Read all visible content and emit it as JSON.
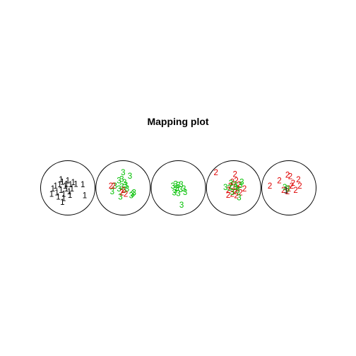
{
  "chart_data": {
    "type": "scatter",
    "title": "Mapping plot",
    "xlabel": "",
    "ylabel": "",
    "grid": false,
    "legend": "none",
    "class_colors": {
      "1": "#000000",
      "2": "#DF0000",
      "3": "#00C000"
    },
    "nodes": [
      {
        "id": 1,
        "points": [
          {
            "x": -0.55,
            "y": -0.05,
            "class": "1"
          },
          {
            "x": -0.45,
            "y": 0.05,
            "class": "1"
          },
          {
            "x": -0.4,
            "y": -0.2,
            "class": "1"
          },
          {
            "x": -0.3,
            "y": 0.1,
            "class": "1"
          },
          {
            "x": -0.25,
            "y": -0.1,
            "class": "1"
          },
          {
            "x": -0.2,
            "y": 0.2,
            "class": "1"
          },
          {
            "x": -0.15,
            "y": -0.25,
            "class": "1"
          },
          {
            "x": -0.1,
            "y": 0.05,
            "class": "1"
          },
          {
            "x": -0.05,
            "y": -0.05,
            "class": "1"
          },
          {
            "x": 0.0,
            "y": 0.25,
            "class": "1"
          },
          {
            "x": 0.05,
            "y": -0.15,
            "class": "1"
          },
          {
            "x": 0.1,
            "y": 0.1,
            "class": "1"
          },
          {
            "x": 0.15,
            "y": -0.05,
            "class": "1"
          },
          {
            "x": 0.2,
            "y": 0.18,
            "class": "1"
          },
          {
            "x": -0.35,
            "y": -0.35,
            "class": "1"
          },
          {
            "x": -0.15,
            "y": -0.4,
            "class": "1"
          },
          {
            "x": 0.3,
            "y": 0.12,
            "class": "1"
          },
          {
            "x": 0.55,
            "y": 0.1,
            "class": "1"
          },
          {
            "x": 0.62,
            "y": -0.3,
            "class": "1"
          },
          {
            "x": -0.6,
            "y": -0.25,
            "class": "1"
          },
          {
            "x": -0.05,
            "y": 0.12,
            "class": "1"
          },
          {
            "x": 0.08,
            "y": -0.28,
            "class": "1"
          },
          {
            "x": -0.25,
            "y": 0.28,
            "class": "1"
          },
          {
            "x": -0.2,
            "y": -0.55,
            "class": "1"
          }
        ]
      },
      {
        "id": 2,
        "points": [
          {
            "x": 0.0,
            "y": 0.55,
            "class": "3"
          },
          {
            "x": 0.25,
            "y": 0.42,
            "class": "3"
          },
          {
            "x": -0.05,
            "y": 0.3,
            "class": "3"
          },
          {
            "x": -0.15,
            "y": 0.25,
            "class": "3"
          },
          {
            "x": 0.05,
            "y": 0.18,
            "class": "3"
          },
          {
            "x": 0.1,
            "y": 0.08,
            "class": "3"
          },
          {
            "x": -0.05,
            "y": 0.02,
            "class": "3"
          },
          {
            "x": 0.15,
            "y": -0.05,
            "class": "3"
          },
          {
            "x": 0.05,
            "y": -0.1,
            "class": "3"
          },
          {
            "x": -0.15,
            "y": -0.05,
            "class": "3"
          },
          {
            "x": -0.3,
            "y": 0.05,
            "class": "3"
          },
          {
            "x": -0.4,
            "y": -0.15,
            "class": "3"
          },
          {
            "x": 0.35,
            "y": -0.25,
            "class": "3"
          },
          {
            "x": 0.4,
            "y": -0.2,
            "class": "3"
          },
          {
            "x": 0.3,
            "y": -0.3,
            "class": "3"
          },
          {
            "x": -0.1,
            "y": -0.35,
            "class": "3"
          },
          {
            "x": -0.45,
            "y": 0.05,
            "class": "2"
          },
          {
            "x": -0.35,
            "y": 0.05,
            "class": "2"
          },
          {
            "x": 0.0,
            "y": -0.1,
            "class": "2"
          },
          {
            "x": 0.1,
            "y": -0.25,
            "class": "2"
          },
          {
            "x": -0.05,
            "y": -0.2,
            "class": "2"
          }
        ]
      },
      {
        "id": 3,
        "points": [
          {
            "x": -0.1,
            "y": 0.12,
            "class": "3"
          },
          {
            "x": 0.0,
            "y": 0.08,
            "class": "3"
          },
          {
            "x": 0.1,
            "y": 0.1,
            "class": "3"
          },
          {
            "x": -0.05,
            "y": -0.02,
            "class": "3"
          },
          {
            "x": 0.08,
            "y": -0.08,
            "class": "3"
          },
          {
            "x": -0.12,
            "y": -0.12,
            "class": "3"
          },
          {
            "x": 0.2,
            "y": -0.05,
            "class": "3"
          },
          {
            "x": -0.15,
            "y": -0.2,
            "class": "3"
          },
          {
            "x": 0.0,
            "y": -0.22,
            "class": "3"
          },
          {
            "x": 0.25,
            "y": -0.18,
            "class": "3"
          },
          {
            "x": -0.2,
            "y": 0.05,
            "class": "3"
          },
          {
            "x": 0.12,
            "y": -0.65,
            "class": "3"
          }
        ]
      },
      {
        "id": 4,
        "points": [
          {
            "x": -0.65,
            "y": 0.55,
            "class": "2"
          },
          {
            "x": 0.05,
            "y": 0.48,
            "class": "2"
          },
          {
            "x": -0.05,
            "y": 0.2,
            "class": "2"
          },
          {
            "x": 0.1,
            "y": 0.25,
            "class": "2"
          },
          {
            "x": 0.2,
            "y": 0.1,
            "class": "2"
          },
          {
            "x": -0.12,
            "y": 0.05,
            "class": "2"
          },
          {
            "x": 0.0,
            "y": 0.0,
            "class": "2"
          },
          {
            "x": 0.15,
            "y": -0.05,
            "class": "2"
          },
          {
            "x": -0.2,
            "y": -0.1,
            "class": "2"
          },
          {
            "x": 0.05,
            "y": -0.15,
            "class": "2"
          },
          {
            "x": 0.25,
            "y": -0.2,
            "class": "2"
          },
          {
            "x": -0.05,
            "y": -0.25,
            "class": "2"
          },
          {
            "x": 0.4,
            "y": -0.05,
            "class": "2"
          },
          {
            "x": -0.2,
            "y": -0.28,
            "class": "2"
          },
          {
            "x": 0.1,
            "y": -0.3,
            "class": "2"
          },
          {
            "x": 0.3,
            "y": 0.2,
            "class": "3"
          },
          {
            "x": 0.25,
            "y": 0.08,
            "class": "3"
          },
          {
            "x": -0.1,
            "y": 0.15,
            "class": "3"
          },
          {
            "x": 0.05,
            "y": 0.1,
            "class": "3"
          },
          {
            "x": -0.15,
            "y": -0.02,
            "class": "3"
          },
          {
            "x": 0.15,
            "y": -0.12,
            "class": "3"
          },
          {
            "x": -0.05,
            "y": -0.18,
            "class": "3"
          },
          {
            "x": 0.2,
            "y": -0.38,
            "class": "3"
          },
          {
            "x": -0.3,
            "y": 0.0,
            "class": "3"
          },
          {
            "x": 0.08,
            "y": 0.0,
            "class": "3"
          }
        ]
      },
      {
        "id": 5,
        "points": [
          {
            "x": -0.05,
            "y": 0.45,
            "class": "2"
          },
          {
            "x": 0.05,
            "y": 0.4,
            "class": "2"
          },
          {
            "x": -0.35,
            "y": 0.25,
            "class": "2"
          },
          {
            "x": 0.35,
            "y": 0.28,
            "class": "2"
          },
          {
            "x": 0.15,
            "y": 0.15,
            "class": "2"
          },
          {
            "x": -0.7,
            "y": 0.05,
            "class": "2"
          },
          {
            "x": 0.4,
            "y": 0.05,
            "class": "2"
          },
          {
            "x": 0.1,
            "y": 0.05,
            "class": "2"
          },
          {
            "x": -0.2,
            "y": -0.1,
            "class": "2"
          },
          {
            "x": 0.0,
            "y": -0.05,
            "class": "2"
          },
          {
            "x": 0.25,
            "y": -0.1,
            "class": "2"
          },
          {
            "x": -0.05,
            "y": -0.15,
            "class": "2"
          },
          {
            "x": -0.15,
            "y": 0.0,
            "class": "3"
          },
          {
            "x": -0.05,
            "y": -0.05,
            "class": "3"
          },
          {
            "x": -0.1,
            "y": -0.12,
            "class": "1"
          }
        ]
      }
    ]
  }
}
